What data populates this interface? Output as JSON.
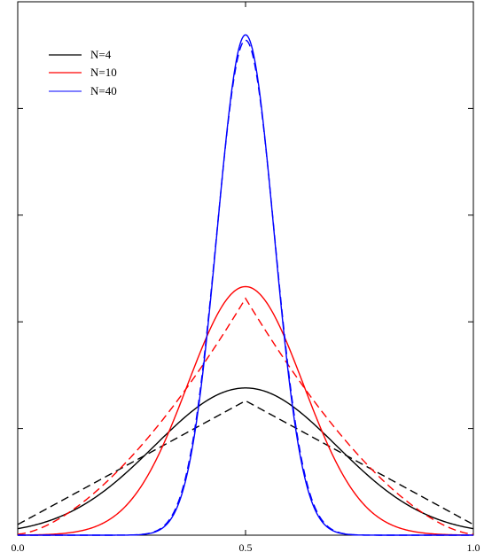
{
  "chart_data": {
    "type": "line",
    "title": "",
    "xlabel": "",
    "ylabel": "",
    "xlim": [
      0.0,
      1.0
    ],
    "ylim": [
      0.0,
      5.0
    ],
    "x_ticks": [
      0.0,
      0.5,
      1.0
    ],
    "x_tick_labels": [
      "0.0",
      "0.5",
      "1.0"
    ],
    "y_ticks": [
      0,
      1,
      2,
      3,
      4,
      5
    ],
    "grid": false,
    "legend_position": "top-left",
    "series": [
      {
        "name": "N=4",
        "color": "#000000",
        "solid": {
          "mean": 0.5,
          "sd": 0.2,
          "scale": 1.38
        },
        "dashed": {
          "shape": "triangle",
          "peak": 1.26,
          "edge": 0.1
        }
      },
      {
        "name": "N=10",
        "color": "#ff0000",
        "solid": {
          "mean": 0.5,
          "sd": 0.127,
          "scale": 2.33
        },
        "dashed": {
          "shape": "triangle-smoothed",
          "peak": 2.22,
          "edge": 0.01
        }
      },
      {
        "name": "N=40",
        "color": "#0000ff",
        "solid": {
          "mean": 0.5,
          "sd": 0.0625,
          "scale": 4.69
        },
        "dashed": {
          "mean": 0.5,
          "sd": 0.0635,
          "scale": 4.64
        }
      }
    ]
  }
}
